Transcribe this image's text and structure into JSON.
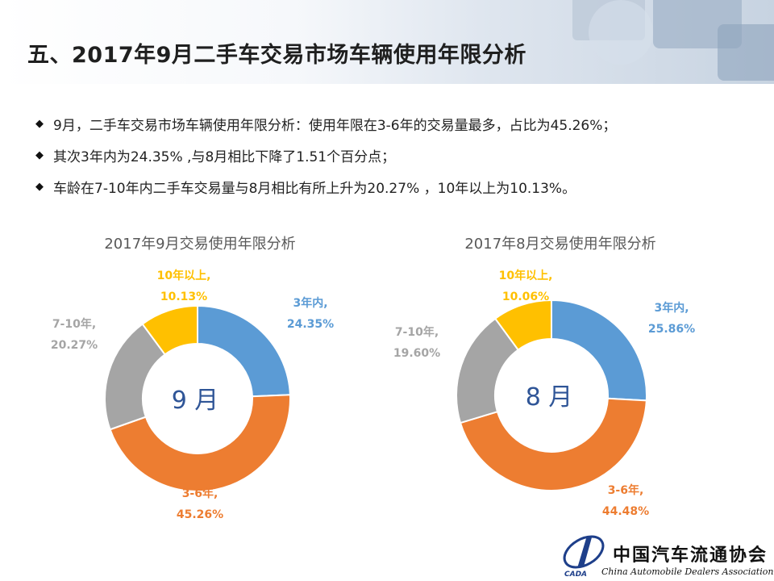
{
  "title": "五、2017年9月二手车交易市场车辆使用年限分析",
  "bullets": [
    "9月，二手车交易市场车辆使用年限分析：使用年限在3-6年的交易量最多，占比为45.26%；",
    "其次3年内为24.35% ,与8月相比下降了1.51个百分点；",
    "车龄在7-10年内二手车交易量与8月相比有所上升为20.27%  ，10年以上为10.13%。"
  ],
  "chart_data": [
    {
      "type": "pie",
      "title": "2017年9月交易使用年限分析",
      "center_label": "9 月",
      "categories": [
        "3年内",
        "3-6年",
        "7-10年",
        "10年以上"
      ],
      "values": [
        24.35,
        45.26,
        20.27,
        10.13
      ],
      "value_labels": [
        "24.35%",
        "45.26%",
        "20.27%",
        "10.13%"
      ],
      "colors": [
        "#5b9bd5",
        "#ed7d31",
        "#a5a5a5",
        "#ffc000"
      ]
    },
    {
      "type": "pie",
      "title": "2017年8月交易使用年限分析",
      "center_label": "8 月",
      "categories": [
        "3年内",
        "3-6年",
        "7-10年",
        "10年以上"
      ],
      "values": [
        25.86,
        44.48,
        19.6,
        10.06
      ],
      "value_labels": [
        "25.86%",
        "44.48%",
        "19.60%",
        "10.06%"
      ],
      "colors": [
        "#5b9bd5",
        "#ed7d31",
        "#a5a5a5",
        "#ffc000"
      ]
    }
  ],
  "footer": {
    "org_cn": "中国汽车流通协会",
    "org_en": "China Automobile Dealers Association",
    "logo_text": "CADA"
  }
}
